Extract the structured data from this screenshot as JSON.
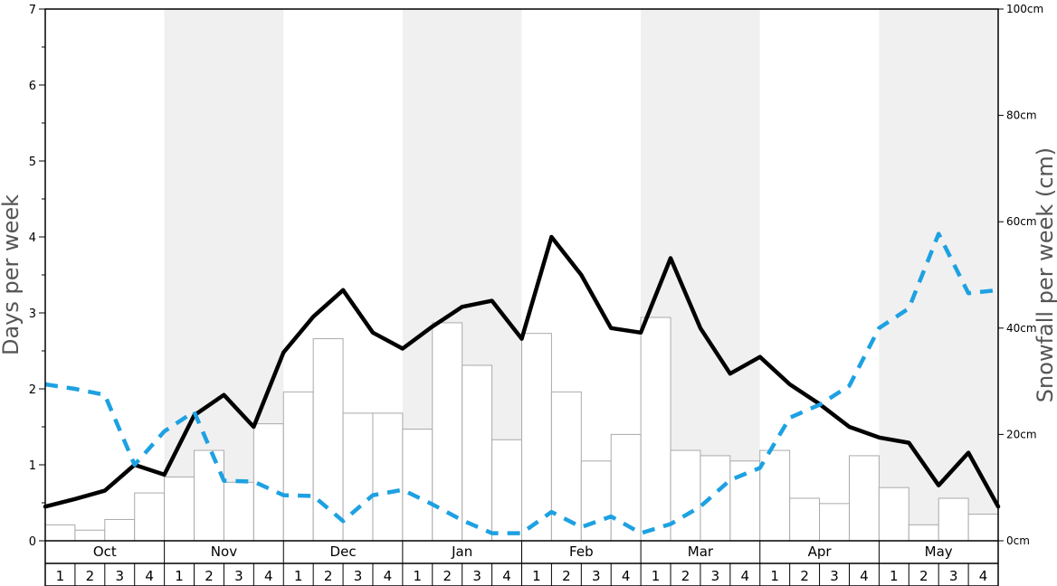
{
  "chart_data": {
    "type": "bar",
    "months": [
      "Oct",
      "Nov",
      "Dec",
      "Jan",
      "Feb",
      "Mar",
      "Apr",
      "May"
    ],
    "weeks": [
      "1",
      "2",
      "3",
      "4"
    ],
    "ylabel": "Days per week",
    "y2label": "Snowfall per week (cm)",
    "ylim": [
      0,
      7
    ],
    "y2lim": [
      0,
      100
    ],
    "y_ticks": [
      "0",
      "1",
      "2",
      "3",
      "4",
      "5",
      "6",
      "7"
    ],
    "y2_ticks": [
      "0cm",
      "20cm",
      "40cm",
      "60cm",
      "80cm",
      "100cm"
    ],
    "shaded_months": [
      "Nov",
      "Jan",
      "Mar",
      "May"
    ],
    "series": [
      {
        "kind": "bars",
        "axis": "right",
        "values": [
          3.0,
          2.0,
          4.0,
          9.0,
          12.0,
          17.0,
          11.0,
          22.0,
          28.0,
          38.0,
          24.0,
          24.0,
          21.0,
          41.0,
          33.0,
          19.0,
          39.0,
          28.0,
          15.0,
          20.0,
          42.0,
          17.0,
          16.0,
          15.0,
          17.0,
          8.0,
          7.0,
          16.0,
          10.0,
          3.0,
          8.0,
          5.0
        ]
      },
      {
        "kind": "solid-line",
        "axis": "left",
        "values": [
          0.45,
          0.55,
          0.66,
          1.0,
          0.87,
          1.65,
          1.92,
          1.5,
          2.48,
          2.95,
          3.3,
          2.74,
          2.53,
          2.82,
          3.08,
          3.16,
          2.66,
          4.0,
          3.5,
          2.8,
          2.74,
          3.72,
          2.8,
          2.2,
          2.42,
          2.06,
          1.8,
          1.5,
          1.36,
          1.29,
          0.73,
          1.16,
          0.45
        ]
      },
      {
        "kind": "dashed-line",
        "axis": "left",
        "values": [
          2.06,
          2.0,
          1.92,
          1.0,
          1.44,
          1.7,
          0.79,
          0.78,
          0.6,
          0.59,
          0.26,
          0.6,
          0.67,
          0.48,
          0.27,
          0.1,
          0.1,
          0.38,
          0.18,
          0.32,
          0.1,
          0.22,
          0.45,
          0.8,
          0.96,
          1.62,
          1.79,
          2.04,
          2.8,
          3.06,
          4.04,
          3.26,
          3.3
        ]
      }
    ],
    "colors": {
      "bar_fill": "#ffffff",
      "bar_stroke": "#aaaaaa",
      "shade": "#f0f0f0",
      "solid_line": "#000000",
      "dashed_line": "#1da1e2"
    }
  }
}
